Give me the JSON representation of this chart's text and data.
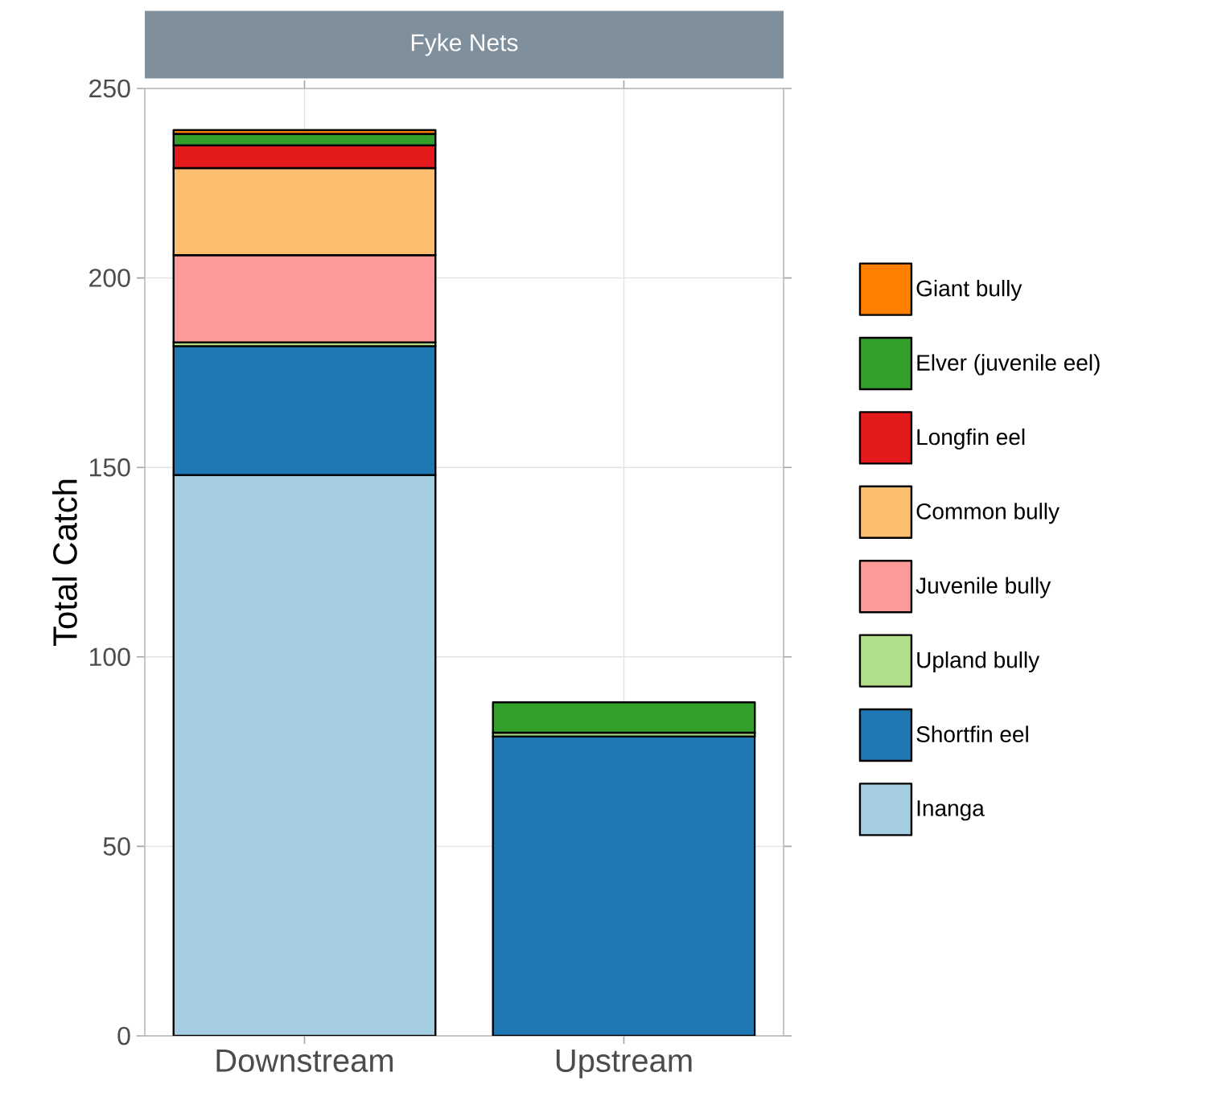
{
  "chart_data": {
    "type": "bar",
    "title": "Fyke Nets",
    "ylabel": "Total Catch",
    "categories": [
      "Downstream",
      "Upstream"
    ],
    "stacked": true,
    "series": [
      {
        "name": "Inanga",
        "color": "#a6cee3",
        "values": [
          148,
          null
        ]
      },
      {
        "name": "Shortfin eel",
        "color": "#1f78b4",
        "values": [
          34,
          79
        ]
      },
      {
        "name": "Upland bully",
        "color": "#b2df8a",
        "values": [
          1,
          1
        ]
      },
      {
        "name": "Juvenile bully",
        "color": "#fb9a99",
        "values": [
          23,
          null
        ]
      },
      {
        "name": "Common bully",
        "color": "#fdbf6f",
        "values": [
          23,
          null
        ]
      },
      {
        "name": "Longfin eel",
        "color": "#e31a1c",
        "values": [
          6,
          null
        ]
      },
      {
        "name": "Elver (juvenile eel)",
        "color": "#33a02c",
        "values": [
          3,
          8
        ]
      },
      {
        "name": "Giant bully",
        "color": "#ff7f00",
        "values": [
          1,
          null
        ]
      }
    ],
    "ylim": [
      0,
      250
    ],
    "yticks": [
      0,
      50,
      100,
      150,
      200,
      250
    ],
    "grid": true,
    "legend": "right"
  }
}
